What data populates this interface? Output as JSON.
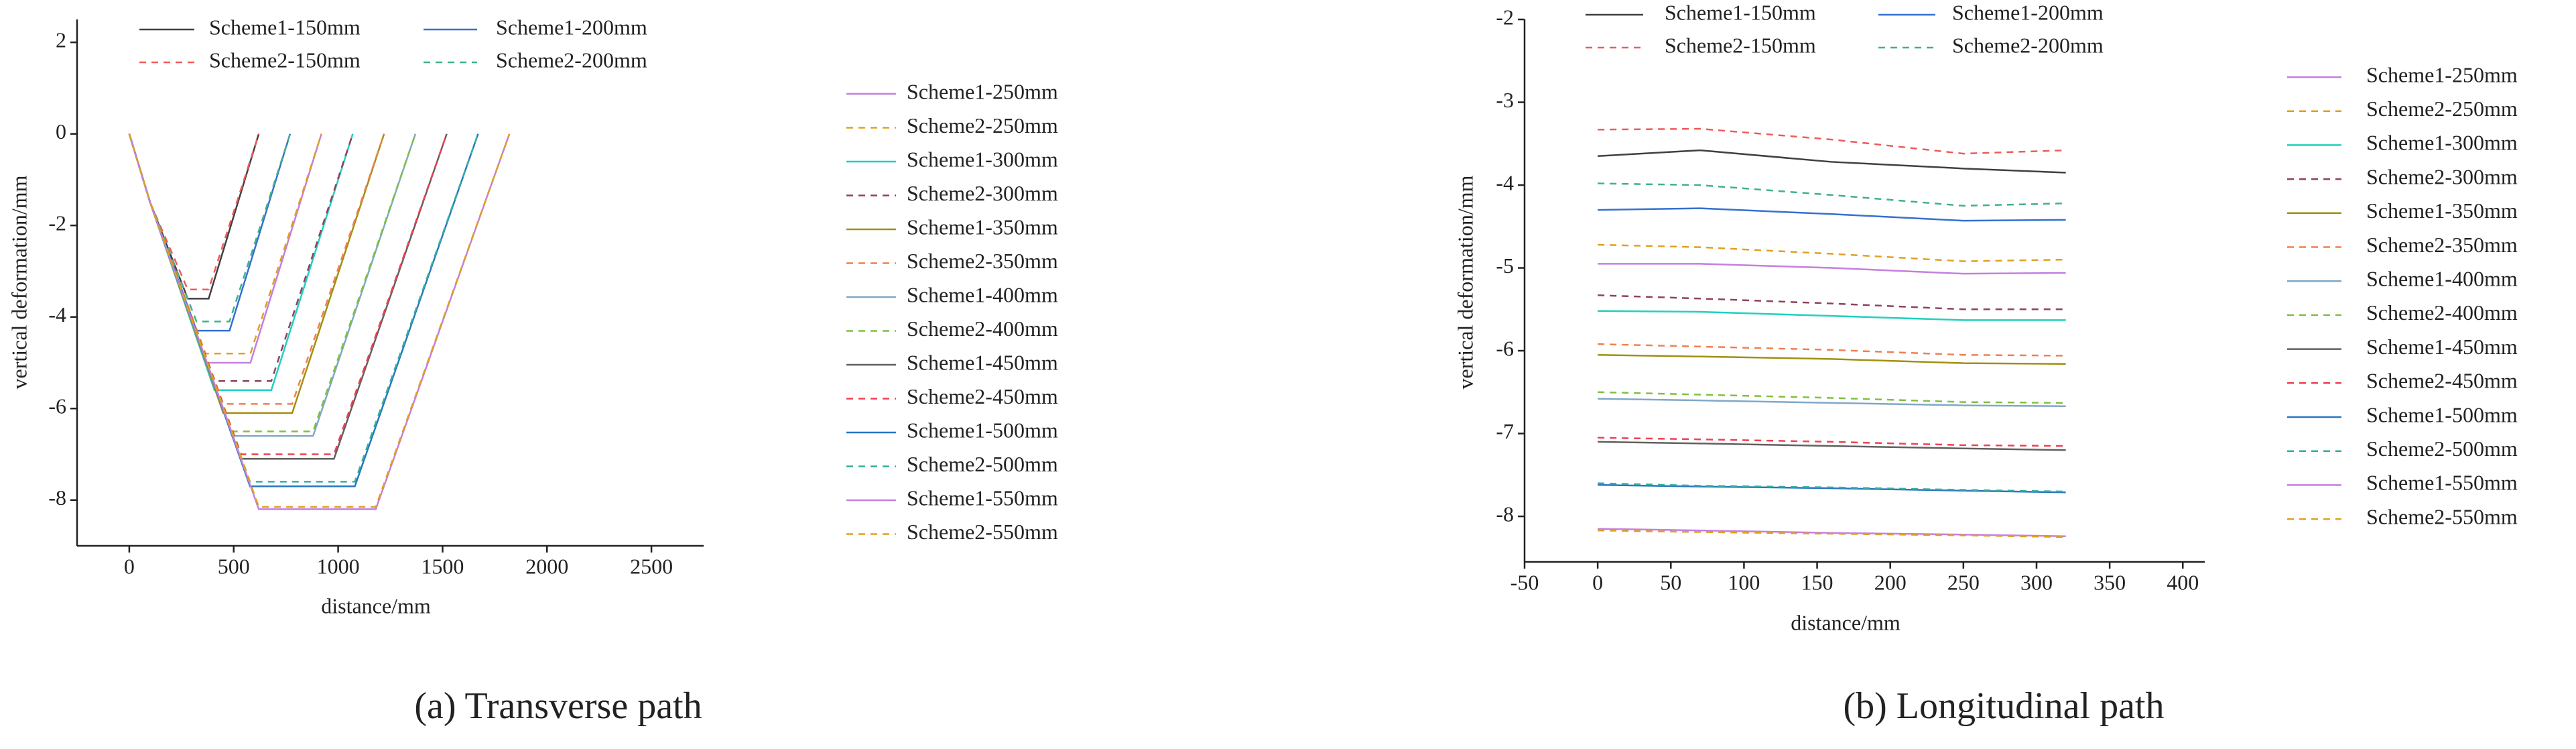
{
  "chart_data": [
    {
      "type": "line",
      "caption": "(a) Transverse path",
      "x_label": "distance/mm",
      "y_label": "vertical deformation/mm",
      "xlim": [
        -250,
        2750
      ],
      "xticks": [
        0,
        500,
        1000,
        1500,
        2000,
        2500
      ],
      "ylim": [
        -9,
        2.5
      ],
      "yticks": [
        -8,
        -6,
        -4,
        -2,
        0,
        2
      ],
      "series": [
        {
          "name": "Scheme1-150mm",
          "color": "#404040",
          "dashed": false,
          "x": [
            0,
            100,
            280,
            380,
            620
          ],
          "values": [
            0,
            -1.5,
            -3.6,
            -3.6,
            0
          ]
        },
        {
          "name": "Scheme2-150mm",
          "color": "#f05a5a",
          "dashed": true,
          "x": [
            0,
            100,
            280,
            380,
            620
          ],
          "values": [
            0,
            -1.5,
            -3.4,
            -3.4,
            0
          ]
        },
        {
          "name": "Scheme1-200mm",
          "color": "#3570d0",
          "dashed": false,
          "x": [
            0,
            100,
            322,
            480,
            770
          ],
          "values": [
            0,
            -1.5,
            -4.3,
            -4.3,
            0
          ]
        },
        {
          "name": "Scheme2-200mm",
          "color": "#3fb08f",
          "dashed": true,
          "x": [
            0,
            100,
            322,
            480,
            770
          ],
          "values": [
            0,
            -1.5,
            -4.1,
            -4.1,
            0
          ]
        },
        {
          "name": "Scheme1-250mm",
          "color": "#c47fe0",
          "dashed": false,
          "x": [
            0,
            100,
            365,
            580,
            920
          ],
          "values": [
            0,
            -1.5,
            -5.0,
            -5.0,
            0
          ]
        },
        {
          "name": "Scheme2-250mm",
          "color": "#e0a020",
          "dashed": true,
          "x": [
            0,
            100,
            365,
            580,
            920
          ],
          "values": [
            0,
            -1.5,
            -4.8,
            -4.8,
            0
          ]
        },
        {
          "name": "Scheme1-300mm",
          "color": "#1fd0c0",
          "dashed": false,
          "x": [
            0,
            100,
            408,
            680,
            1070
          ],
          "values": [
            0,
            -1.5,
            -5.6,
            -5.6,
            0
          ]
        },
        {
          "name": "Scheme2-300mm",
          "color": "#8f4060",
          "dashed": true,
          "x": [
            0,
            100,
            408,
            680,
            1070
          ],
          "values": [
            0,
            -1.5,
            -5.4,
            -5.4,
            0
          ]
        },
        {
          "name": "Scheme1-350mm",
          "color": "#a09010",
          "dashed": false,
          "x": [
            0,
            100,
            450,
            780,
            1220
          ],
          "values": [
            0,
            -1.5,
            -6.1,
            -6.1,
            0
          ]
        },
        {
          "name": "Scheme2-350mm",
          "color": "#f08050",
          "dashed": true,
          "x": [
            0,
            100,
            450,
            780,
            1220
          ],
          "values": [
            0,
            -1.5,
            -5.9,
            -5.9,
            0
          ]
        },
        {
          "name": "Scheme1-400mm",
          "color": "#80a8c8",
          "dashed": false,
          "x": [
            0,
            100,
            492,
            880,
            1370
          ],
          "values": [
            0,
            -1.5,
            -6.6,
            -6.6,
            0
          ]
        },
        {
          "name": "Scheme2-400mm",
          "color": "#80c040",
          "dashed": true,
          "x": [
            0,
            100,
            492,
            880,
            1370
          ],
          "values": [
            0,
            -1.5,
            -6.5,
            -6.5,
            0
          ]
        },
        {
          "name": "Scheme1-450mm",
          "color": "#606060",
          "dashed": false,
          "x": [
            0,
            100,
            535,
            980,
            1520
          ],
          "values": [
            0,
            -1.5,
            -7.1,
            -7.1,
            0
          ]
        },
        {
          "name": "Scheme2-450mm",
          "color": "#f04050",
          "dashed": true,
          "x": [
            0,
            100,
            535,
            980,
            1520
          ],
          "values": [
            0,
            -1.5,
            -7.0,
            -7.0,
            0
          ]
        },
        {
          "name": "Scheme1-500mm",
          "color": "#2a75c0",
          "dashed": false,
          "x": [
            0,
            100,
            578,
            1080,
            1670
          ],
          "values": [
            0,
            -1.5,
            -7.7,
            -7.7,
            0
          ]
        },
        {
          "name": "Scheme2-500mm",
          "color": "#30b0a0",
          "dashed": true,
          "x": [
            0,
            100,
            578,
            1080,
            1670
          ],
          "values": [
            0,
            -1.5,
            -7.6,
            -7.6,
            0
          ]
        },
        {
          "name": "Scheme1-550mm",
          "color": "#c47fe0",
          "dashed": false,
          "x": [
            0,
            100,
            620,
            1180,
            1820
          ],
          "values": [
            0,
            -1.5,
            -8.2,
            -8.2,
            0
          ]
        },
        {
          "name": "Scheme2-550mm",
          "color": "#e0a020",
          "dashed": true,
          "x": [
            0,
            100,
            620,
            1180,
            1820
          ],
          "values": [
            0,
            -1.5,
            -8.15,
            -8.15,
            0
          ]
        }
      ]
    },
    {
      "type": "line",
      "caption": "(b) Longitudinal path",
      "x_label": "distance/mm",
      "y_label": "vertical deformation/mm",
      "xlim": [
        -50,
        415
      ],
      "xticks": [
        -50,
        0,
        50,
        100,
        150,
        200,
        250,
        300,
        350,
        400
      ],
      "ylim": [
        -8.55,
        -2
      ],
      "yticks": [
        -8,
        -7,
        -6,
        -5,
        -4,
        -3,
        -2
      ],
      "x": [
        0,
        70,
        160,
        250,
        320
      ],
      "series": [
        {
          "name": "Scheme1-150mm",
          "color": "#404040",
          "dashed": false,
          "values": [
            -3.65,
            -3.58,
            -3.72,
            -3.8,
            -3.85
          ]
        },
        {
          "name": "Scheme2-150mm",
          "color": "#f05a5a",
          "dashed": true,
          "values": [
            -3.33,
            -3.32,
            -3.45,
            -3.62,
            -3.58
          ]
        },
        {
          "name": "Scheme1-200mm",
          "color": "#3570d0",
          "dashed": false,
          "values": [
            -4.3,
            -4.28,
            -4.35,
            -4.43,
            -4.42
          ]
        },
        {
          "name": "Scheme2-200mm",
          "color": "#3fb08f",
          "dashed": true,
          "values": [
            -3.98,
            -4.0,
            -4.12,
            -4.25,
            -4.22
          ]
        },
        {
          "name": "Scheme1-250mm",
          "color": "#c47fe0",
          "dashed": false,
          "values": [
            -4.95,
            -4.95,
            -5.0,
            -5.07,
            -5.06
          ]
        },
        {
          "name": "Scheme2-250mm",
          "color": "#e0a020",
          "dashed": true,
          "values": [
            -4.72,
            -4.75,
            -4.83,
            -4.92,
            -4.9
          ]
        },
        {
          "name": "Scheme1-300mm",
          "color": "#1fd0c0",
          "dashed": false,
          "values": [
            -5.52,
            -5.53,
            -5.58,
            -5.63,
            -5.63
          ]
        },
        {
          "name": "Scheme2-300mm",
          "color": "#8f4060",
          "dashed": true,
          "values": [
            -5.33,
            -5.37,
            -5.43,
            -5.5,
            -5.5
          ]
        },
        {
          "name": "Scheme1-350mm",
          "color": "#a09010",
          "dashed": false,
          "values": [
            -6.05,
            -6.07,
            -6.1,
            -6.15,
            -6.16
          ]
        },
        {
          "name": "Scheme2-350mm",
          "color": "#f08050",
          "dashed": true,
          "values": [
            -5.92,
            -5.95,
            -5.99,
            -6.05,
            -6.06
          ]
        },
        {
          "name": "Scheme1-400mm",
          "color": "#80a8c8",
          "dashed": false,
          "values": [
            -6.58,
            -6.6,
            -6.63,
            -6.66,
            -6.67
          ]
        },
        {
          "name": "Scheme2-400mm",
          "color": "#80c040",
          "dashed": true,
          "values": [
            -6.5,
            -6.53,
            -6.57,
            -6.62,
            -6.63
          ]
        },
        {
          "name": "Scheme1-450mm",
          "color": "#606060",
          "dashed": false,
          "values": [
            -7.1,
            -7.12,
            -7.15,
            -7.18,
            -7.2
          ]
        },
        {
          "name": "Scheme2-450mm",
          "color": "#f04050",
          "dashed": true,
          "values": [
            -7.05,
            -7.07,
            -7.1,
            -7.14,
            -7.15
          ]
        },
        {
          "name": "Scheme1-500mm",
          "color": "#2a75c0",
          "dashed": false,
          "values": [
            -7.62,
            -7.64,
            -7.66,
            -7.69,
            -7.71
          ]
        },
        {
          "name": "Scheme2-500mm",
          "color": "#30b0a0",
          "dashed": true,
          "values": [
            -7.6,
            -7.63,
            -7.65,
            -7.68,
            -7.7
          ]
        },
        {
          "name": "Scheme1-550mm",
          "color": "#c47fe0",
          "dashed": false,
          "values": [
            -8.15,
            -8.17,
            -8.2,
            -8.22,
            -8.24
          ]
        },
        {
          "name": "Scheme2-550mm",
          "color": "#e0a020",
          "dashed": true,
          "values": [
            -8.17,
            -8.19,
            -8.21,
            -8.23,
            -8.25
          ]
        }
      ]
    }
  ]
}
